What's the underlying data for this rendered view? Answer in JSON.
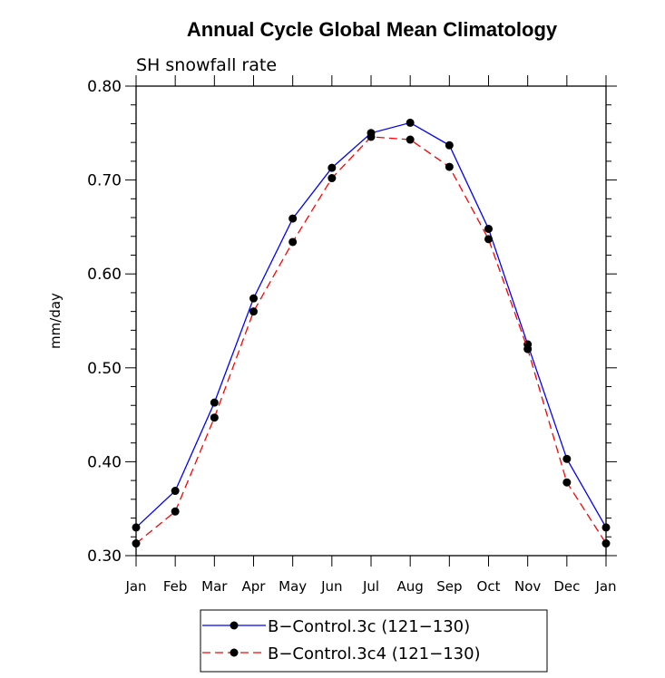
{
  "chart_data": {
    "type": "line",
    "title": "Annual Cycle Global Mean Climatology",
    "subtitle": "SH snowfall rate",
    "xlabel": "",
    "ylabel": "mm/day",
    "ylim": [
      0.3,
      0.8
    ],
    "yticks": [
      "0.30",
      "0.40",
      "0.50",
      "0.60",
      "0.70",
      "0.80"
    ],
    "categories": [
      "Jan",
      "Feb",
      "Mar",
      "Apr",
      "May",
      "Jun",
      "Jul",
      "Aug",
      "Sep",
      "Oct",
      "Nov",
      "Dec",
      "Jan"
    ],
    "series": [
      {
        "name": "B−Control.3c (121−130)",
        "color": "#0000ff",
        "dash": "solid",
        "values": [
          0.33,
          0.369,
          0.463,
          0.574,
          0.659,
          0.713,
          0.75,
          0.761,
          0.737,
          0.648,
          0.525,
          0.403,
          0.33
        ]
      },
      {
        "name": "B−Control.3c4 (121−130)",
        "color": "#ff0000",
        "dash": "dashed",
        "values": [
          0.313,
          0.347,
          0.447,
          0.56,
          0.634,
          0.702,
          0.746,
          0.743,
          0.714,
          0.637,
          0.52,
          0.378,
          0.313
        ]
      }
    ],
    "legend_position": "bottom-center"
  }
}
